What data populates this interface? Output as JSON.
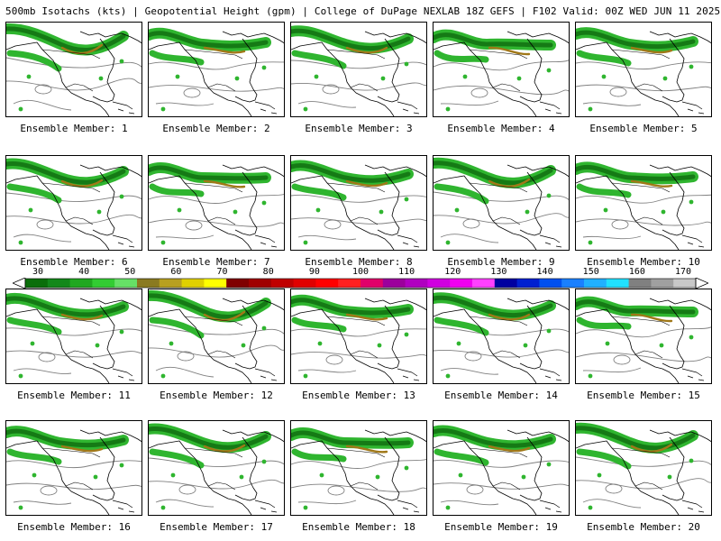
{
  "header": {
    "title": "500mb Isotachs (kts) | Geopotential Height (gpm) | College of DuPage NEXLAB  18Z GEFS | F102 Valid: 00Z WED JUN 11 2025"
  },
  "members": [
    {
      "label": "Ensemble Member: 1"
    },
    {
      "label": "Ensemble Member: 2"
    },
    {
      "label": "Ensemble Member: 3"
    },
    {
      "label": "Ensemble Member: 4"
    },
    {
      "label": "Ensemble Member: 5"
    },
    {
      "label": "Ensemble Member: 6"
    },
    {
      "label": "Ensemble Member: 7"
    },
    {
      "label": "Ensemble Member: 8"
    },
    {
      "label": "Ensemble Member: 9"
    },
    {
      "label": "Ensemble Member: 10"
    },
    {
      "label": "Ensemble Member: 11"
    },
    {
      "label": "Ensemble Member: 12"
    },
    {
      "label": "Ensemble Member: 13"
    },
    {
      "label": "Ensemble Member: 14"
    },
    {
      "label": "Ensemble Member: 15"
    },
    {
      "label": "Ensemble Member: 16"
    },
    {
      "label": "Ensemble Member: 17"
    },
    {
      "label": "Ensemble Member: 18"
    },
    {
      "label": "Ensemble Member: 19"
    },
    {
      "label": "Ensemble Member: 20"
    }
  ],
  "colorbar": {
    "ticks": [
      "30",
      "40",
      "50",
      "60",
      "70",
      "80",
      "90",
      "100",
      "110",
      "120",
      "130",
      "140",
      "150",
      "160",
      "170"
    ],
    "colors": [
      "#0a6e0a",
      "#13881a",
      "#20a820",
      "#33cc33",
      "#66e066",
      "#8a7a20",
      "#b8a020",
      "#e0d000",
      "#ffff00",
      "#800000",
      "#a00000",
      "#c00000",
      "#e00000",
      "#ff0000",
      "#ff2020",
      "#e0006a",
      "#9c009c",
      "#b000c0",
      "#d000e0",
      "#f000f0",
      "#ff40ff",
      "#0000a0",
      "#0020d0",
      "#0050f0",
      "#1a80ff",
      "#20b0ff",
      "#20e0ff",
      "#808080",
      "#a0a0a0",
      "#c8c8c8"
    ]
  },
  "colors": {
    "jet_green": "#2fb52f",
    "jet_dark": "#157a15",
    "jet_brown": "#a07818",
    "contour": "#808080",
    "coast": "#000000"
  }
}
